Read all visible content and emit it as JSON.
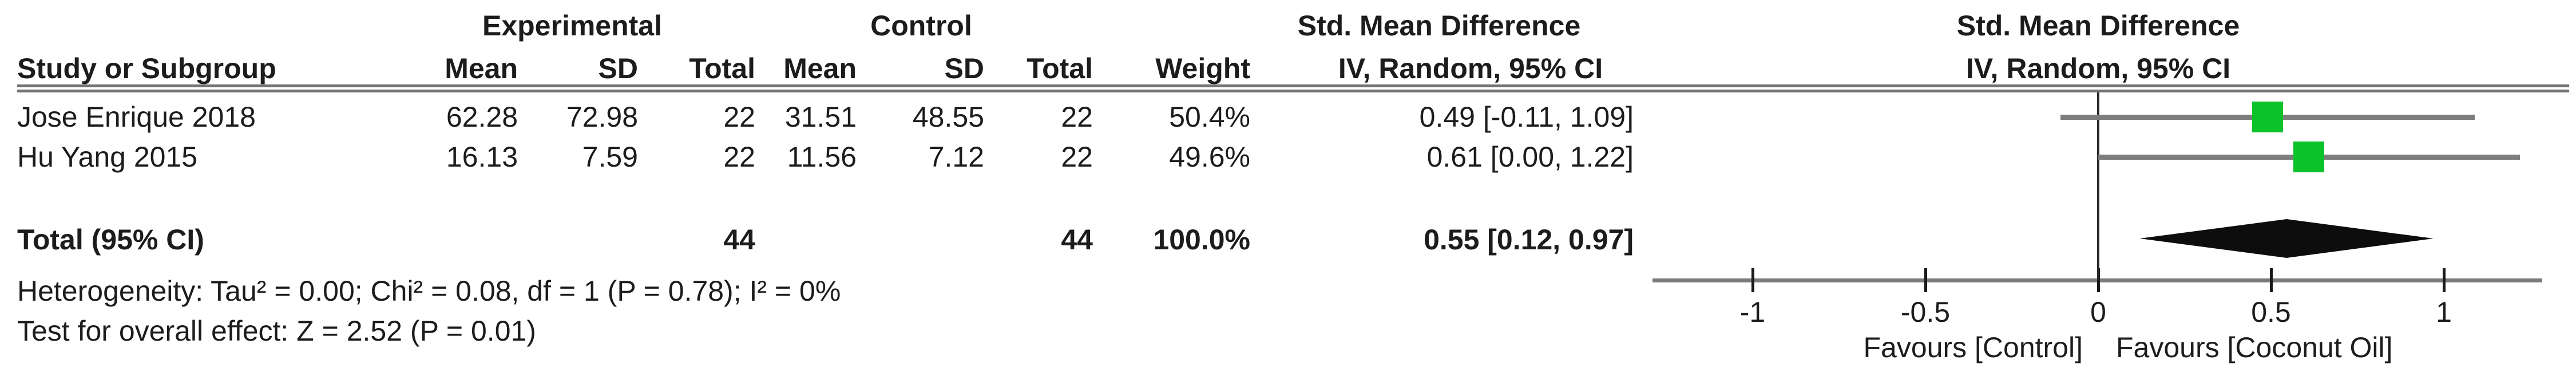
{
  "table": {
    "group_headers": {
      "experimental": "Experimental",
      "control": "Control",
      "smd_text": "Std. Mean Difference",
      "smd_plot": "Std. Mean Difference"
    },
    "col_headers": {
      "study": "Study or Subgroup",
      "exp_mean": "Mean",
      "exp_sd": "SD",
      "exp_total": "Total",
      "ctrl_mean": "Mean",
      "ctrl_sd": "SD",
      "ctrl_total": "Total",
      "weight": "Weight",
      "iv_text": "IV, Random, 95% CI",
      "iv_plot": "IV, Random, 95% CI"
    },
    "rows": [
      {
        "study": "Jose Enrique 2018",
        "exp_mean": "62.28",
        "exp_sd": "72.98",
        "exp_total": "22",
        "ctrl_mean": "31.51",
        "ctrl_sd": "48.55",
        "ctrl_total": "22",
        "weight": "50.4%",
        "ci": "0.49 [-0.11, 1.09]"
      },
      {
        "study": "Hu Yang 2015",
        "exp_mean": "16.13",
        "exp_sd": "7.59",
        "exp_total": "22",
        "ctrl_mean": "11.56",
        "ctrl_sd": "7.12",
        "ctrl_total": "22",
        "weight": "49.6%",
        "ci": "0.61 [0.00, 1.22]"
      }
    ],
    "total_row": {
      "label": "Total (95% CI)",
      "exp_total": "44",
      "ctrl_total": "44",
      "weight": "100.0%",
      "ci": "0.55 [0.12, 0.97]"
    },
    "footer": {
      "heterogeneity": "Heterogeneity: Tau² = 0.00; Chi² = 0.08, df = 1 (P = 0.78); I² = 0%",
      "overall_effect": "Test for overall effect: Z = 2.52 (P = 0.01)"
    }
  },
  "chart_data": {
    "type": "forest",
    "title": "Std. Mean Difference, IV, Random, 95% CI",
    "studies": [
      {
        "name": "Jose Enrique 2018",
        "smd": 0.49,
        "ci_low": -0.11,
        "ci_high": 1.09,
        "weight_pct": 50.4
      },
      {
        "name": "Hu Yang 2015",
        "smd": 0.61,
        "ci_low": 0.0,
        "ci_high": 1.22,
        "weight_pct": 49.6
      }
    ],
    "total": {
      "smd": 0.55,
      "ci_low": 0.12,
      "ci_high": 0.97
    },
    "axis": {
      "ticks": [
        -1,
        -0.5,
        0,
        0.5,
        1
      ],
      "xlim": [
        -1.29,
        1.29
      ],
      "left_label": "Favours [Control]",
      "right_label": "Favours [Coconut Oil]"
    },
    "colors": {
      "square": "#0cc22b",
      "diamond": "#0d0d0d",
      "ci_line": "#7d7d7d",
      "axis_line": "#7b7b7b"
    }
  }
}
